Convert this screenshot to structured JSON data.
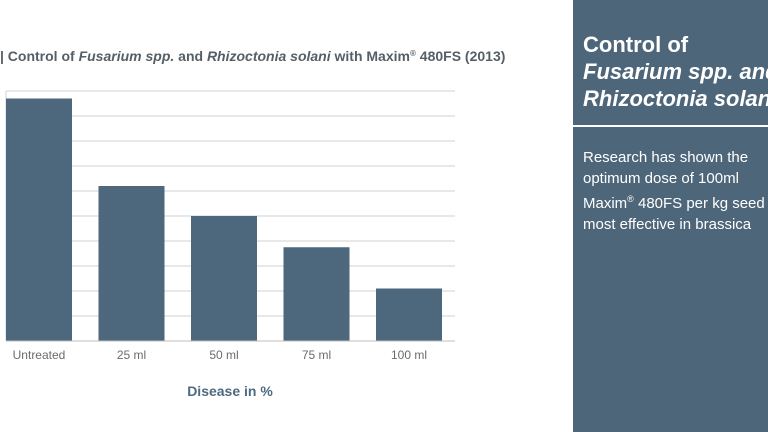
{
  "chart_data": {
    "type": "bar",
    "title_parts": {
      "prefix": "| Control of ",
      "species1": "Fusarium spp.",
      "mid": " and ",
      "species2": "Rhizoctonia solani",
      "with": " with Maxim",
      "reg": "®",
      "product": " 480FS (2013)"
    },
    "categories": [
      "Untreated",
      "25 ml",
      "50 ml",
      "75 ml",
      "100 ml"
    ],
    "values": [
      9.7,
      6.2,
      5.0,
      3.75,
      2.1
    ],
    "ylim": [
      0,
      10
    ],
    "xlabel": "Disease in %",
    "grid": true,
    "bar_color": "#4d677c",
    "grid_color": "#d0d0d0"
  },
  "panel": {
    "title_line1": "Control of",
    "title_line2": "Fusarium spp. and",
    "title_line3": "Rhizoctonia solani",
    "body_line1": "Research has shown the",
    "body_line2": "optimum dose of 100ml",
    "body_line3_a": "Maxim",
    "body_line3_reg": "®",
    "body_line3_b": " 480FS per kg seed",
    "body_line4": "most effective in brassica",
    "bg_color": "#4e6679"
  }
}
